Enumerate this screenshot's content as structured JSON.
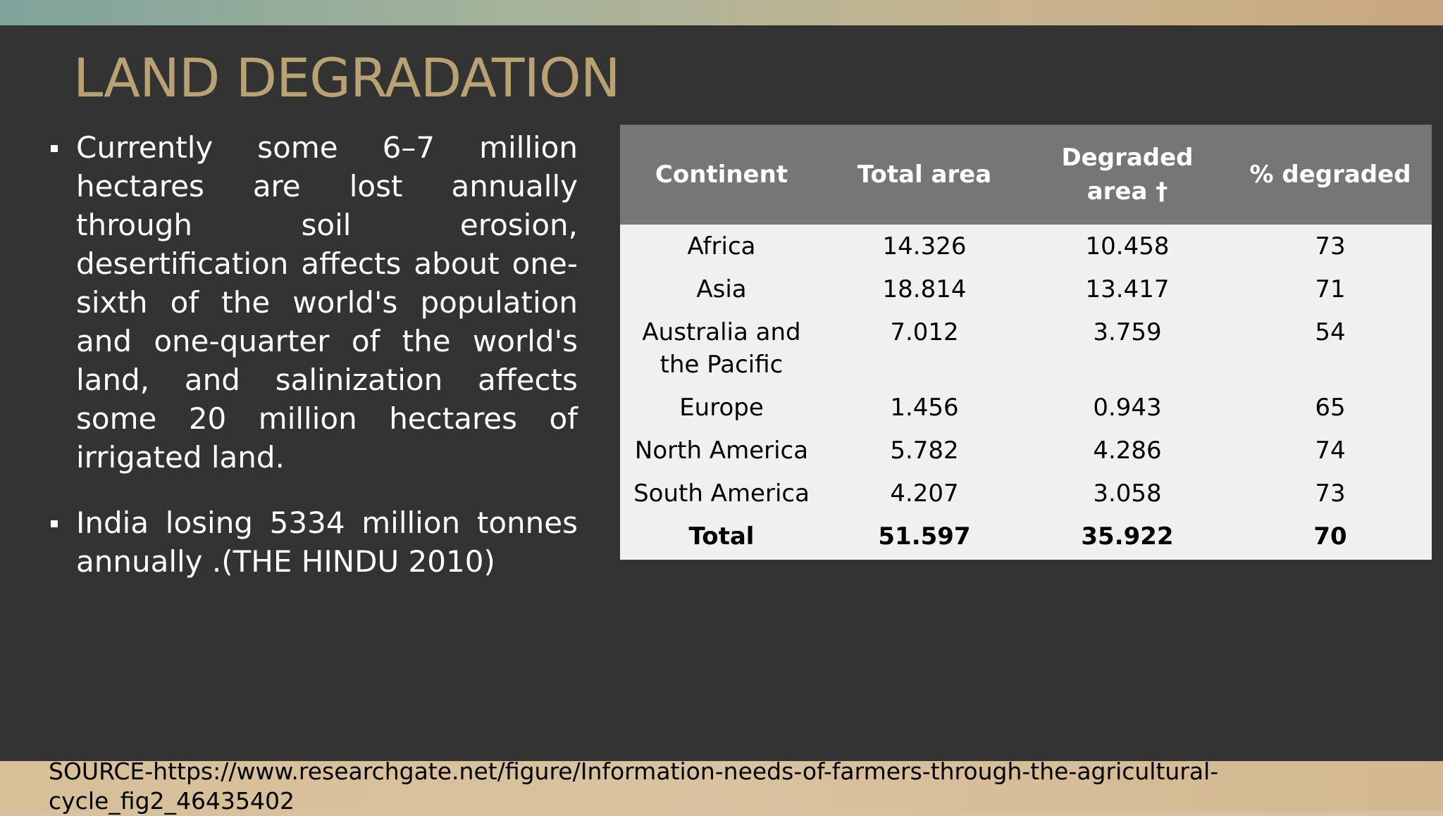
{
  "slide": {
    "title": "LAND DEGRADATION",
    "bullets": [
      "Currently some 6–7 million hectares are lost annually through soil erosion, desertification affects about one-sixth of the world's population and one-quarter of the world's land, and salinization affects some 20 million hectares of irrigated land.",
      "India losing 5334 million tonnes annually .(THE HINDU 2010)"
    ],
    "source": "SOURCE-https://www.researchgate.net/figure/Information-needs-of-farmers-through-the-agricultural-cycle_fig2_46435402"
  },
  "table": {
    "headers": [
      "Continent",
      "Total area",
      "Degraded area †",
      "% degraded"
    ],
    "rows": [
      [
        "Africa",
        "14.326",
        "10.458",
        "73"
      ],
      [
        "Asia",
        "18.814",
        "13.417",
        "71"
      ],
      [
        "Australia and the Pacific",
        "7.012",
        "3.759",
        "54"
      ],
      [
        "Europe",
        "1.456",
        "0.943",
        "65"
      ],
      [
        "North America",
        "5.782",
        "4.286",
        "74"
      ],
      [
        "South America",
        "4.207",
        "3.058",
        "73"
      ]
    ],
    "total": [
      "Total",
      "51.597",
      "35.922",
      "70"
    ]
  },
  "colors": {
    "slide_background": "#333333",
    "title": "#b8a274",
    "table_header": "#767676",
    "table_body": "#f1eff2"
  }
}
